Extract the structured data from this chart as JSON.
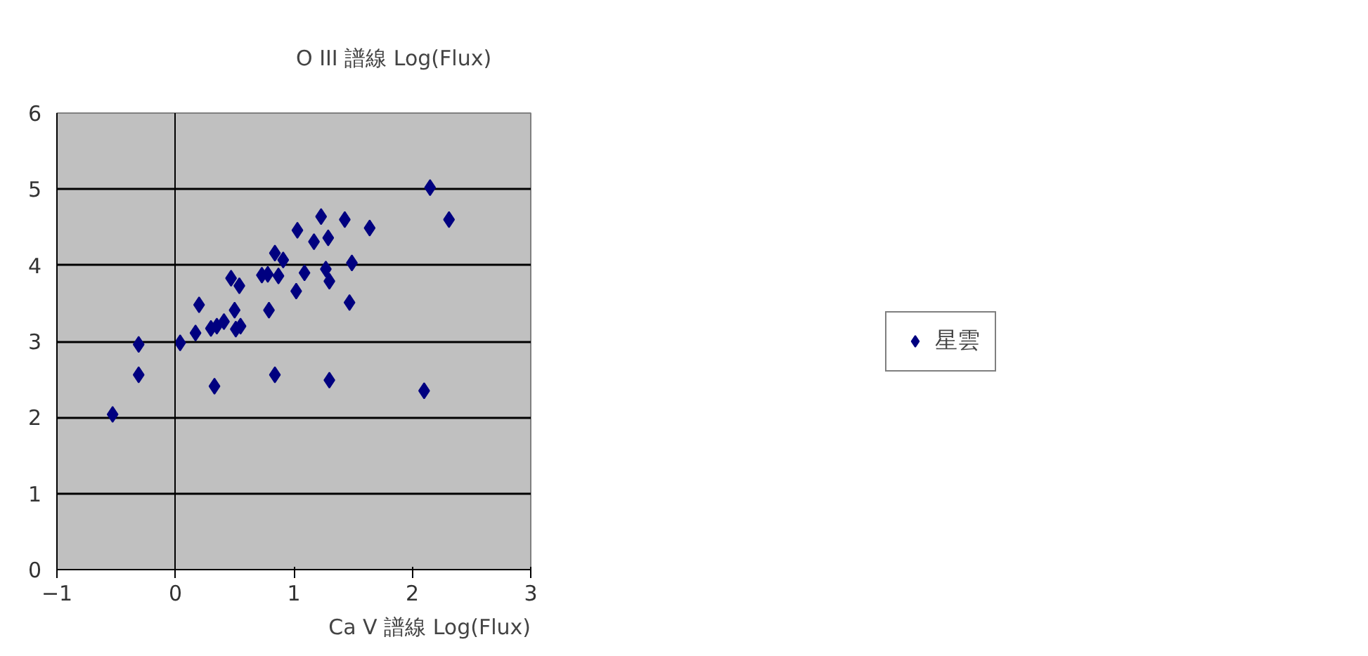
{
  "chart_data": {
    "type": "scatter",
    "xlabel": "Ca V 譜線 Log(Flux)",
    "ylabel": "O III 譜線 Log(Flux)",
    "xlim": [
      -1,
      3
    ],
    "xticks": [
      -1,
      0,
      1,
      2,
      3
    ],
    "ylim": [
      0,
      6
    ],
    "yticks": [
      0,
      1,
      2,
      3,
      4,
      5,
      6
    ],
    "grid": "y",
    "legend": "right",
    "marker": "diamond",
    "series": [
      {
        "name": "星雲",
        "color": "#000080",
        "x": [
          -0.53,
          -0.31,
          -0.31,
          0.04,
          0.17,
          0.2,
          0.3,
          0.33,
          0.35,
          0.41,
          0.47,
          0.5,
          0.51,
          0.54,
          0.55,
          0.73,
          0.78,
          0.79,
          0.84,
          0.84,
          0.87,
          0.91,
          1.03,
          1.02,
          1.09,
          1.17,
          1.23,
          1.27,
          1.29,
          1.3,
          1.3,
          1.43,
          1.49,
          1.47,
          1.64,
          2.15,
          2.31,
          2.1
        ],
        "values": [
          2.04,
          2.96,
          2.56,
          2.98,
          3.11,
          3.48,
          3.17,
          2.41,
          3.2,
          3.26,
          3.83,
          3.41,
          3.16,
          3.73,
          3.2,
          3.87,
          3.88,
          3.41,
          4.16,
          2.56,
          3.86,
          4.07,
          4.46,
          3.66,
          3.9,
          4.31,
          4.64,
          3.95,
          4.36,
          3.79,
          2.49,
          4.6,
          4.03,
          3.51,
          4.49,
          5.02,
          4.6,
          2.35
        ]
      }
    ]
  }
}
